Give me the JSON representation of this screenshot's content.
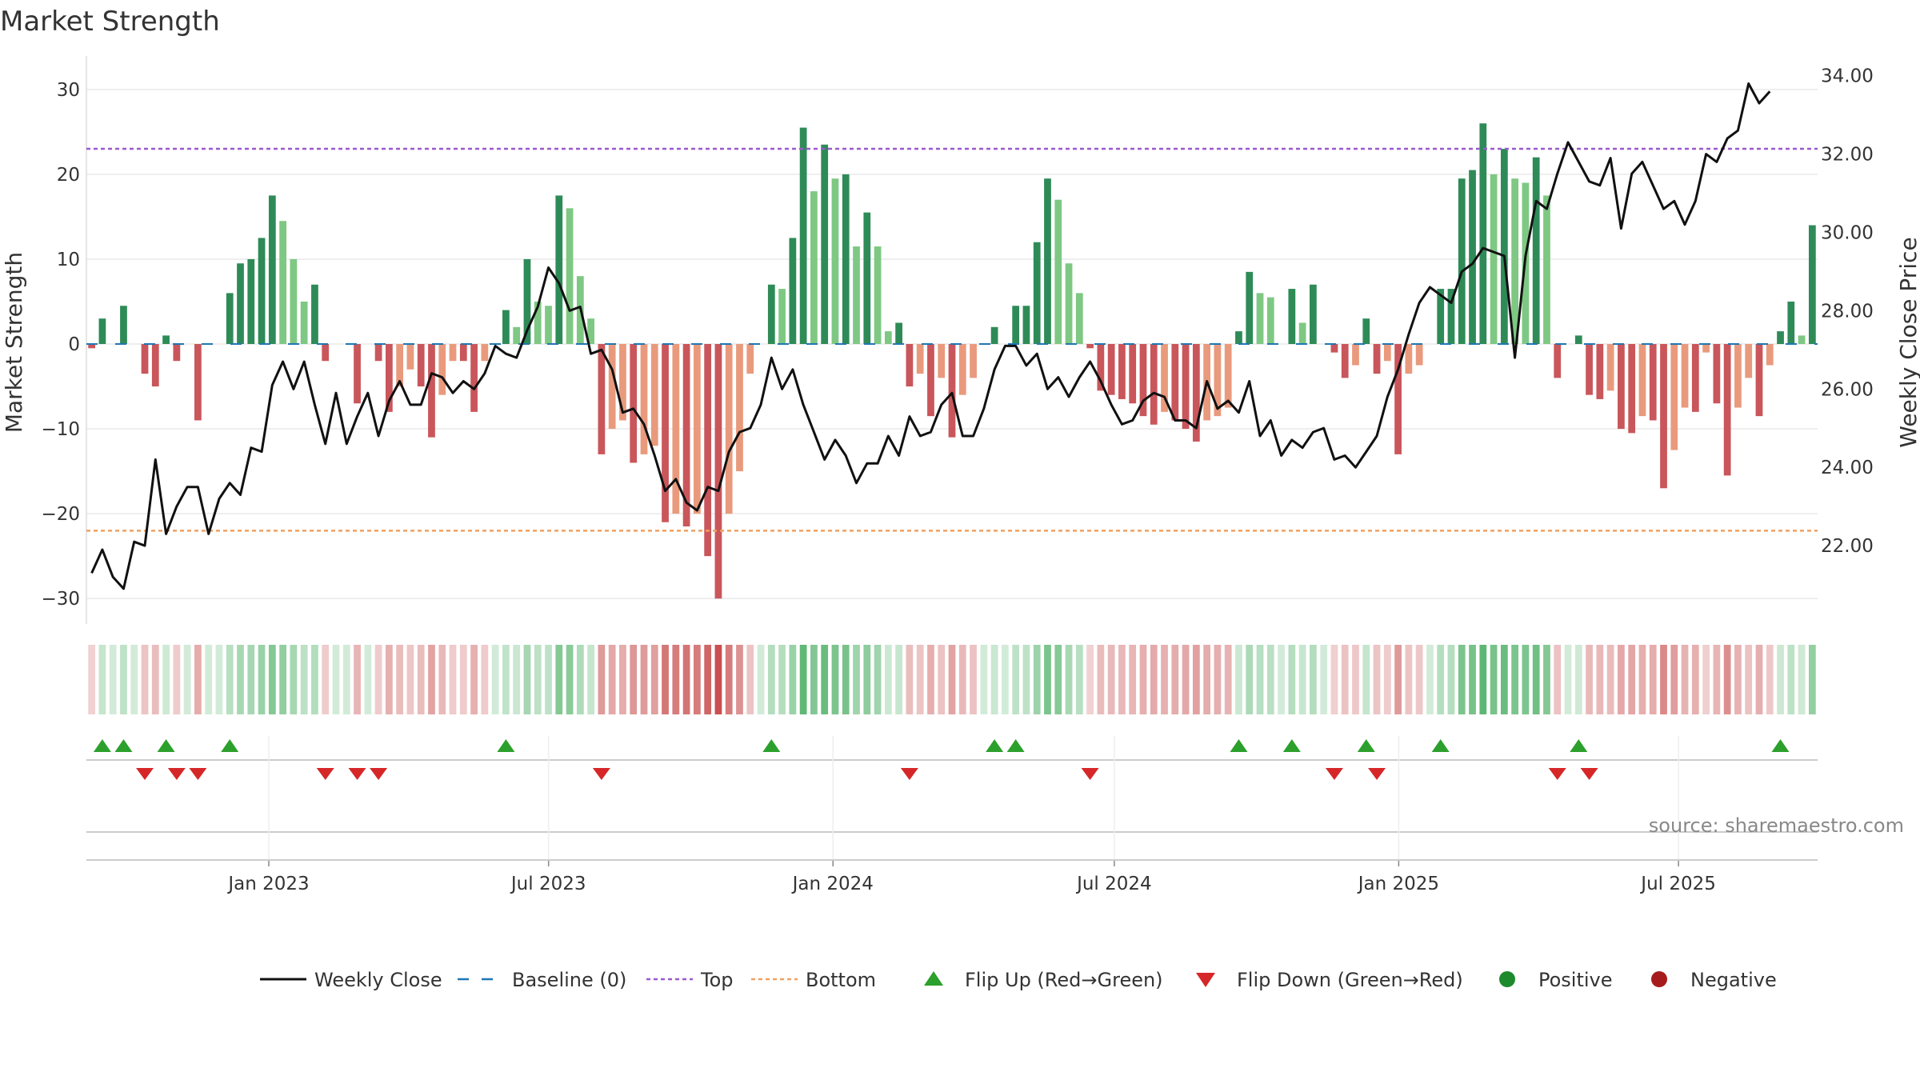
{
  "chart_data": {
    "type": "bar+line",
    "title": "Market Strength",
    "source": "source: sharemaestro.com",
    "ylabel_left": "Market Strength",
    "ylabel_right": "Weekly Close Price",
    "ylim_left": [
      -33,
      33
    ],
    "ylim_right": [
      20.0,
      34.3
    ],
    "yticks_left": [
      30,
      20,
      10,
      0,
      -10,
      -20,
      -30
    ],
    "ytick_labels_left": [
      "30",
      "20",
      "10",
      "0",
      "−10",
      "−20",
      "−30"
    ],
    "yticks_right": [
      34,
      32,
      30,
      28,
      26,
      24,
      22
    ],
    "ytick_labels_right": [
      "34.00",
      "32.00",
      "30.00",
      "28.00",
      "26.00",
      "24.00",
      "22.00"
    ],
    "top_line": 23.0,
    "bottom_line": -22.0,
    "x_start": "2022-09-05",
    "x_end": "2025-09-29",
    "x_ticks": [
      {
        "date": "2023-01-01",
        "label": "Jan 2023"
      },
      {
        "date": "2023-07-01",
        "label": "Jul 2023"
      },
      {
        "date": "2024-01-01",
        "label": "Jan 2024"
      },
      {
        "date": "2024-07-01",
        "label": "Jul 2024"
      },
      {
        "date": "2025-01-01",
        "label": "Jan 2025"
      },
      {
        "date": "2025-07-01",
        "label": "Jul 2025"
      }
    ],
    "strength": [
      -0.5,
      3,
      0,
      4.5,
      0,
      -3.5,
      -5,
      1,
      -2,
      0,
      -9,
      0,
      0,
      6,
      9.5,
      10,
      12.5,
      17.5,
      14.5,
      10,
      5,
      7,
      -2,
      0,
      0,
      -7,
      0,
      -2,
      -8,
      -5,
      -3,
      -5,
      -11,
      -6,
      -2,
      -2,
      -8,
      -2,
      0,
      4,
      2,
      10,
      5,
      4.5,
      17.5,
      16,
      8,
      3,
      -13,
      -10,
      -9,
      -14,
      -13,
      -12,
      -21,
      -20,
      -21.5,
      -20,
      -25,
      -30,
      -20,
      -15,
      -3.5,
      0,
      7,
      6.5,
      12.5,
      25.5,
      18,
      23.5,
      19.5,
      20,
      11.5,
      15.5,
      11.5,
      1.5,
      2.5,
      -5,
      -3.5,
      -8.5,
      -4,
      -11,
      -6,
      -4,
      0,
      2,
      0,
      4.5,
      4.5,
      12,
      19.5,
      17,
      9.5,
      6,
      -0.5,
      -5.5,
      -6,
      -6.5,
      -7,
      -8.5,
      -9.5,
      -8,
      -9,
      -10,
      -11.5,
      -9,
      -8.5,
      -7.5,
      1.5,
      8.5,
      6,
      5.5,
      0,
      6.5,
      2.5,
      7,
      0,
      -1,
      -4,
      -2.5,
      3,
      -3.5,
      -2,
      -13,
      -3.5,
      -2.5,
      0,
      6.5,
      6.5,
      19.5,
      20.5,
      26,
      20,
      23,
      19.5,
      19,
      22,
      17.5,
      -4,
      0,
      1,
      -6,
      -6.5,
      -5.5,
      -10,
      -10.5,
      -8.5,
      -9,
      -17,
      -12.5,
      -7.5,
      -8,
      -1,
      -7,
      -15.5,
      -7.5,
      -4,
      -8.5,
      -2.5,
      1.5,
      5,
      1,
      14
    ],
    "close": [
      21.3,
      21.9,
      21.2,
      20.9,
      22.1,
      22.0,
      24.2,
      22.3,
      23.0,
      23.5,
      23.5,
      22.3,
      23.2,
      23.6,
      23.3,
      24.5,
      24.4,
      26.1,
      26.7,
      26.0,
      26.7,
      25.6,
      24.6,
      25.9,
      24.6,
      25.3,
      25.9,
      24.8,
      25.7,
      26.2,
      25.6,
      25.6,
      26.4,
      26.3,
      25.9,
      26.2,
      26.0,
      26.4,
      27.1,
      26.9,
      26.8,
      27.5,
      28.1,
      29.1,
      28.7,
      28.0,
      28.1,
      26.9,
      27.0,
      26.5,
      25.4,
      25.5,
      25.1,
      24.3,
      23.4,
      23.7,
      23.1,
      22.9,
      23.5,
      23.4,
      24.4,
      24.9,
      25.0,
      25.6,
      26.8,
      26.0,
      26.5,
      25.6,
      24.9,
      24.2,
      24.7,
      24.3,
      23.6,
      24.1,
      24.1,
      24.8,
      24.3,
      25.3,
      24.8,
      24.9,
      25.6,
      25.9,
      24.8,
      24.8,
      25.5,
      26.5,
      27.1,
      27.1,
      26.6,
      26.9,
      26.0,
      26.3,
      25.8,
      26.3,
      26.7,
      26.2,
      25.6,
      25.1,
      25.2,
      25.7,
      25.9,
      25.8,
      25.2,
      25.2,
      25.0,
      26.2,
      25.5,
      25.7,
      25.4,
      26.2,
      24.8,
      25.2,
      24.3,
      24.7,
      24.5,
      24.9,
      25.0,
      24.2,
      24.3,
      24.0,
      24.4,
      24.8,
      25.8,
      26.5,
      27.4,
      28.2,
      28.6,
      28.4,
      28.2,
      29.0,
      29.2,
      29.6,
      29.5,
      29.4,
      26.8,
      29.4,
      30.8,
      30.6,
      31.5,
      32.3,
      31.8,
      31.3,
      31.2,
      31.9,
      30.1,
      31.5,
      31.8,
      31.2,
      30.6,
      30.8,
      30.2,
      30.8,
      32.0,
      31.8,
      32.4,
      32.6,
      33.8,
      33.3,
      33.6
    ],
    "series_legend": [
      {
        "name": "Weekly Close",
        "color": "#111111"
      },
      {
        "name": "Baseline (0)",
        "color": "#1f77b4"
      },
      {
        "name": "Top",
        "color": "#9b59d0"
      },
      {
        "name": "Bottom",
        "color": "#f0a060"
      },
      {
        "name": "Flip Up (Red→Green)",
        "color": "#2ca02c"
      },
      {
        "name": "Flip Down (Green→Red)",
        "color": "#d62728"
      },
      {
        "name": "Positive",
        "color": "#1e8a2e"
      },
      {
        "name": "Negative",
        "color": "#a61c1c"
      }
    ],
    "colors": {
      "green_strong": "#2e8b57",
      "green_light": "#7ec883",
      "red_strong": "#c9565b",
      "red_light": "#e99a7d",
      "close_line": "#111111",
      "baseline": "#1f77b4",
      "top": "#9b59d0",
      "bottom": "#f0a060",
      "flip_up": "#2ca02c",
      "flip_down": "#d62728"
    }
  }
}
